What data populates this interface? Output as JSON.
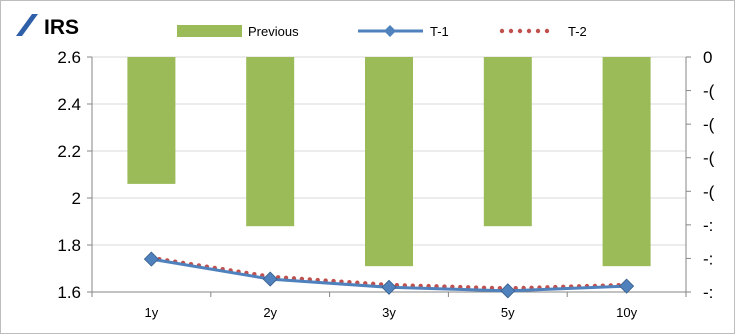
{
  "title": "IRS",
  "colors": {
    "bars": "#9bbb59",
    "line_t1": "#4f81bd",
    "marker_t1": "#4f81bd",
    "dots_t2": "#c0504d",
    "logo": "#2e5fa8"
  },
  "chart_data": {
    "type": "bar",
    "categories": [
      "1y",
      "2y",
      "3y",
      "5y",
      "10y"
    ],
    "ylim": [
      1.6,
      2.6
    ],
    "yticks": [
      "2.6",
      "2.4",
      "2.2",
      "2",
      "1.8",
      "1.6"
    ],
    "y2_tick_labels": [
      "0",
      "-(",
      "-(",
      "-(",
      "-(",
      "-:",
      "-:",
      "-:"
    ],
    "series": [
      {
        "name": "Previous",
        "kind": "bar",
        "axis": "secondary",
        "values": [
          2.06,
          1.88,
          1.71,
          1.88,
          1.71
        ]
      },
      {
        "name": "T-1",
        "kind": "line",
        "axis": "primary",
        "values": [
          1.74,
          1.655,
          1.62,
          1.605,
          1.625
        ]
      },
      {
        "name": "T-2",
        "kind": "dotted",
        "axis": "primary",
        "values": [
          1.745,
          1.665,
          1.63,
          1.615,
          1.63
        ]
      }
    ],
    "legend": "top",
    "grid": true
  }
}
